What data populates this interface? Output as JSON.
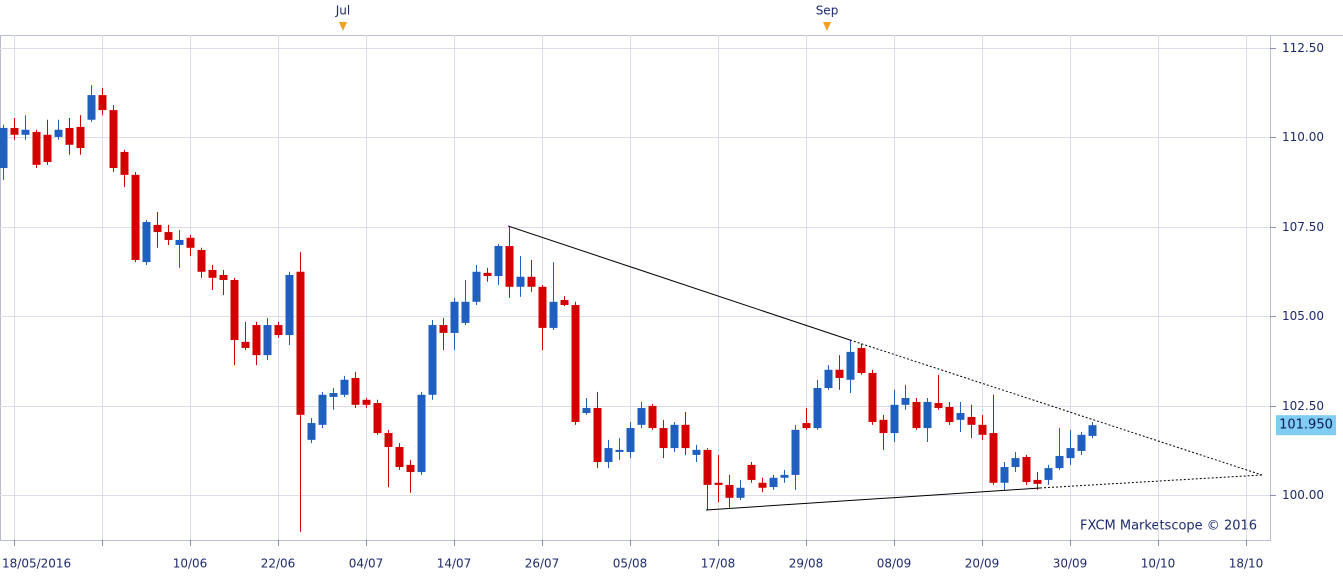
{
  "chart_data": {
    "type": "candlestick",
    "top_labels": [
      "Jul",
      "Sep"
    ],
    "watermark": "FXCM Marketscope © 2016",
    "last_price": {
      "value": 101.95,
      "label": "101.950"
    },
    "up_color": "#1f5fbf",
    "down_color": "#d40000",
    "grid": true,
    "ylim": [
      98.74,
      112.86
    ],
    "yticks": [
      {
        "value": 100,
        "label": "100.00"
      },
      {
        "value": 102.5,
        "label": "102.50"
      },
      {
        "value": 105,
        "label": "105.00"
      },
      {
        "value": 107.5,
        "label": "107.50"
      },
      {
        "value": 110,
        "label": "110.00"
      },
      {
        "value": 112.5,
        "label": "112.50"
      }
    ],
    "categories": [
      null,
      "18/05/2016",
      null,
      null,
      null,
      null,
      null,
      null,
      null,
      null,
      null,
      null,
      null,
      null,
      null,
      null,
      null,
      "10/06",
      null,
      null,
      null,
      null,
      null,
      null,
      null,
      "22/06",
      null,
      null,
      null,
      null,
      null,
      null,
      null,
      "04/07",
      null,
      null,
      null,
      null,
      null,
      null,
      null,
      "14/07",
      null,
      null,
      null,
      null,
      null,
      null,
      null,
      "26/07",
      null,
      null,
      null,
      null,
      null,
      null,
      null,
      "05/08",
      null,
      null,
      null,
      null,
      null,
      null,
      null,
      "17/08",
      null,
      null,
      null,
      null,
      null,
      null,
      null,
      "29/08",
      null,
      null,
      null,
      null,
      null,
      null,
      null,
      "08/09",
      null,
      null,
      null,
      null,
      null,
      null,
      null,
      "20/09",
      null,
      null,
      null,
      null,
      null,
      null,
      null,
      "30/09",
      null,
      null,
      null,
      null,
      null,
      null,
      null,
      "10/10",
      null,
      null,
      null,
      null,
      null,
      null,
      null,
      "18/10"
    ],
    "open": [
      109.14,
      110.26,
      110.07,
      110.15,
      110.07,
      110.01,
      110.26,
      110.29,
      110.49,
      111.18,
      110.76,
      109.59,
      108.95,
      106.51,
      107.55,
      107.35,
      106.99,
      107.19,
      106.85,
      106.29,
      106.15,
      106.01,
      104.28,
      104.75,
      103.91,
      104.75,
      104.47,
      106.24,
      101.54,
      101.96,
      102.74,
      102.8,
      103.27,
      102.66,
      102.57,
      101.73,
      101.34,
      100.84,
      100.64,
      102.8,
      104.75,
      104.53,
      104.81,
      105.4,
      106.21,
      106.12,
      106.96,
      105.82,
      106.1,
      105.82,
      104.67,
      105.45,
      105.31,
      102.29,
      102.43,
      100.92,
      101.2,
      101.2,
      101.96,
      102.49,
      101.87,
      101.31,
      101.96,
      101.12,
      101.26,
      100.34,
      100.28,
      99.92,
      100.84,
      100.34,
      100.22,
      100.48,
      100.56,
      102.01,
      101.87,
      102.99,
      103.5,
      103.22,
      104.11,
      103.41,
      102.1,
      101.73,
      102.52,
      102.6,
      101.87,
      102.57,
      102.46,
      102.1,
      102.18,
      101.96,
      101.73,
      100.34,
      100.78,
      101.06,
      100.42,
      100.42,
      100.75,
      101.03,
      101.23,
      101.65,
      null,
      null,
      null,
      null,
      null,
      null,
      null,
      null,
      null,
      null,
      null,
      null,
      null,
      null
    ],
    "high": [
      110.35,
      110.54,
      110.62,
      110.21,
      110.49,
      110.49,
      110.54,
      110.62,
      111.46,
      111.38,
      110.9,
      109.65,
      109.03,
      107.69,
      107.91,
      107.55,
      107.41,
      107.27,
      106.91,
      106.43,
      106.29,
      106.07,
      104.84,
      104.84,
      104.95,
      104.84,
      106.24,
      106.79,
      102.15,
      102.88,
      102.99,
      103.33,
      103.44,
      102.71,
      102.66,
      101.82,
      101.45,
      100.98,
      102.88,
      104.89,
      104.95,
      105.51,
      106.01,
      106.43,
      106.35,
      107.02,
      107.52,
      106.68,
      106.57,
      105.87,
      106.51,
      105.56,
      105.4,
      102.71,
      102.88,
      101.54,
      101.59,
      102.04,
      102.6,
      102.54,
      102.1,
      102.04,
      102.32,
      101.4,
      101.31,
      101.12,
      100.56,
      100.42,
      100.92,
      100.48,
      100.56,
      100.7,
      101.96,
      102.43,
      103.22,
      103.63,
      103.91,
      104.33,
      104.22,
      103.5,
      102.24,
      102.94,
      103.08,
      102.71,
      102.71,
      103.36,
      102.6,
      102.6,
      102.52,
      102.24,
      102.8,
      100.92,
      101.2,
      101.12,
      100.64,
      100.84,
      101.87,
      101.82,
      101.76,
      102.04,
      null,
      null,
      null,
      null,
      null,
      null,
      null,
      null,
      null,
      null,
      null,
      null,
      null,
      null
    ],
    "low": [
      108.81,
      109.93,
      109.93,
      109.14,
      109.23,
      109.93,
      109.51,
      109.51,
      110.43,
      110.62,
      109.03,
      108.61,
      106.51,
      106.43,
      106.91,
      106.99,
      106.35,
      106.68,
      106.07,
      105.73,
      105.59,
      103.63,
      104.05,
      103.63,
      103.77,
      104.39,
      104.19,
      98.97,
      101.45,
      101.87,
      102.38,
      102.74,
      102.43,
      102.43,
      101.68,
      100.22,
      100.7,
      100.06,
      100.56,
      102.66,
      104.05,
      104.05,
      104.75,
      105.31,
      105.96,
      105.87,
      105.51,
      105.54,
      105.68,
      104.05,
      104.61,
      105.28,
      101.96,
      102.24,
      100.75,
      100.75,
      100.98,
      101.03,
      101.87,
      101.82,
      101.03,
      101.2,
      101.12,
      100.92,
      99.58,
      99.8,
      99.64,
      99.86,
      100.34,
      100.08,
      100.14,
      100.34,
      100.14,
      101.82,
      101.82,
      102.94,
      102.94,
      102.85,
      103.36,
      101.96,
      101.26,
      101.48,
      102.38,
      101.82,
      101.48,
      102.38,
      101.96,
      101.76,
      101.59,
      101.54,
      100.28,
      100.14,
      100.64,
      100.28,
      100.14,
      100.28,
      100.7,
      100.84,
      101.12,
      101.59,
      null,
      null,
      null,
      null,
      null,
      null,
      null,
      null,
      null,
      null,
      null,
      null,
      null,
      null
    ],
    "close": [
      110.26,
      110.07,
      110.21,
      109.23,
      109.31,
      110.21,
      109.79,
      109.7,
      111.18,
      110.76,
      109.14,
      108.95,
      106.57,
      107.63,
      107.35,
      107.13,
      107.13,
      106.91,
      106.24,
      106.07,
      106.01,
      104.33,
      104.11,
      103.91,
      104.75,
      104.47,
      106.15,
      102.24,
      102.01,
      102.8,
      102.85,
      103.22,
      102.52,
      102.52,
      101.73,
      101.34,
      100.78,
      100.64,
      102.8,
      104.75,
      104.53,
      105.4,
      105.4,
      106.24,
      106.12,
      106.96,
      105.82,
      106.1,
      105.82,
      104.67,
      105.4,
      105.31,
      102.04,
      102.43,
      100.92,
      101.31,
      101.26,
      101.87,
      102.43,
      101.87,
      101.31,
      101.96,
      101.31,
      101.26,
      100.28,
      100.28,
      99.92,
      100.2,
      100.42,
      100.2,
      100.48,
      100.56,
      101.82,
      101.87,
      102.99,
      103.5,
      103.27,
      104.0,
      103.41,
      102.04,
      101.73,
      102.52,
      102.71,
      101.87,
      102.6,
      102.43,
      102.04,
      102.29,
      101.96,
      101.68,
      100.34,
      100.78,
      101.03,
      100.36,
      100.31,
      100.75,
      101.09,
      101.31,
      101.68,
      101.95,
      null,
      null,
      null,
      null,
      null,
      null,
      null,
      null,
      null,
      null,
      null,
      null,
      null,
      null
    ]
  }
}
